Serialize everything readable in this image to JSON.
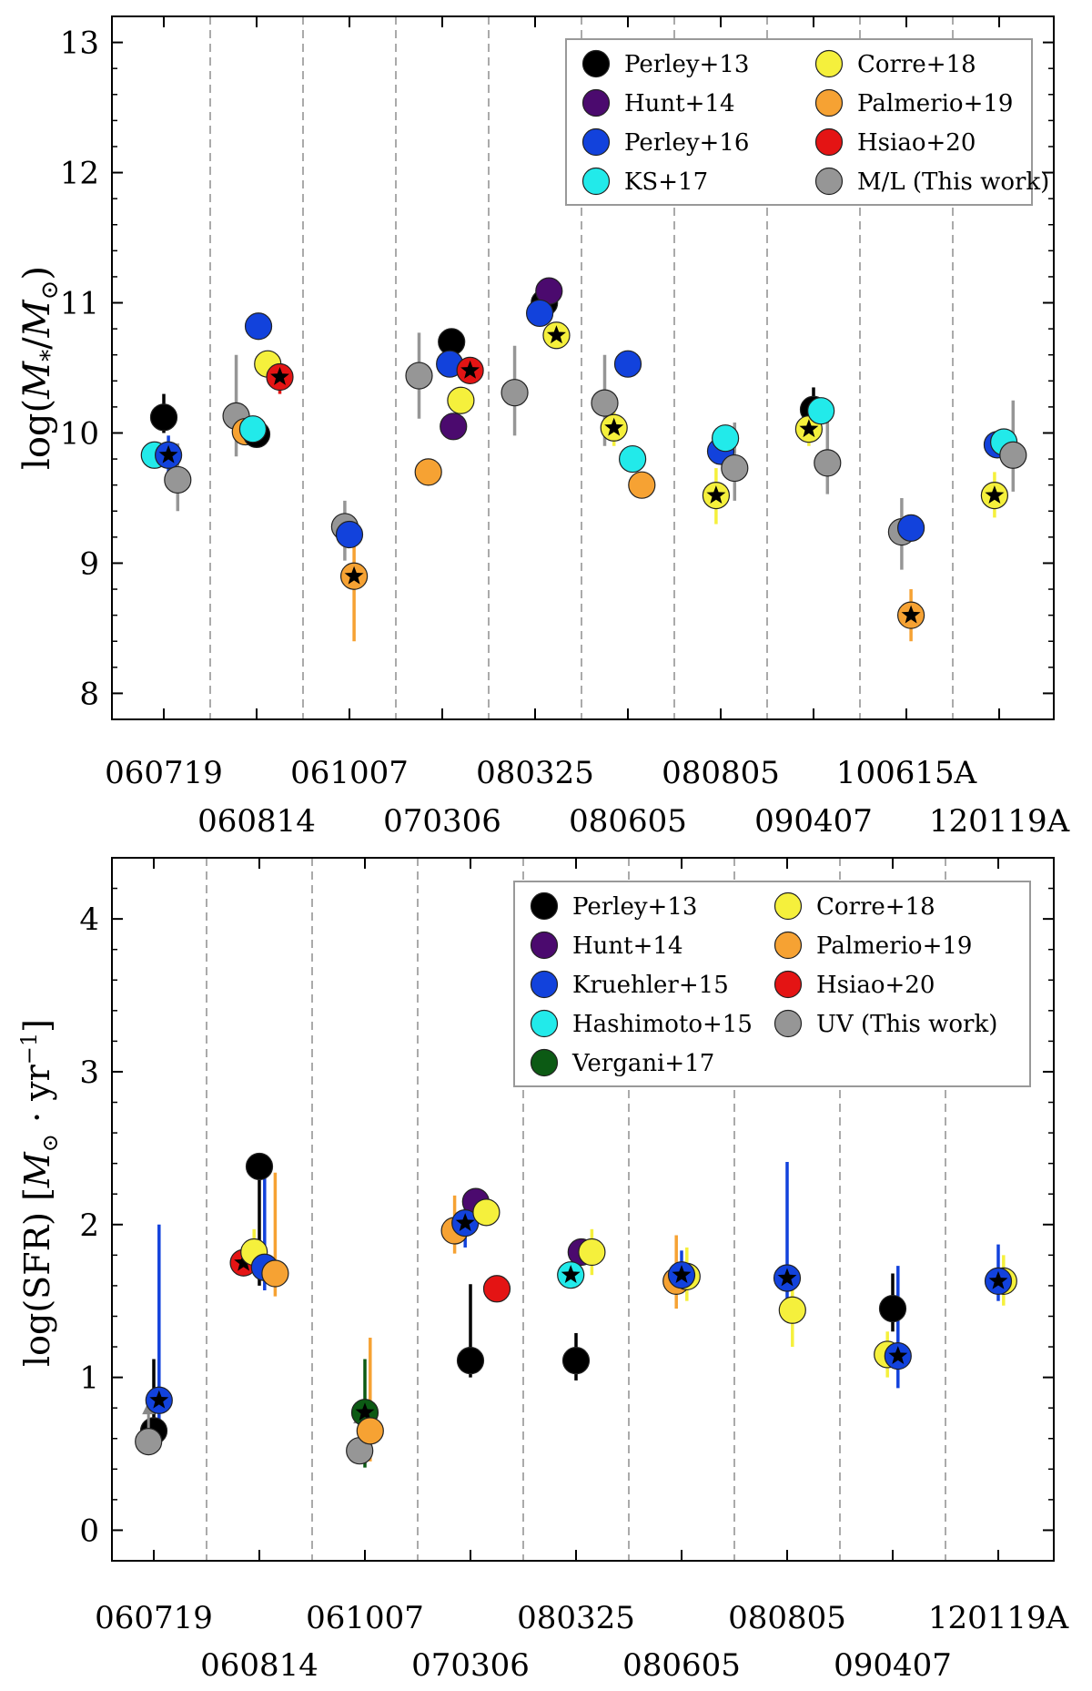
{
  "chart_data": [
    {
      "type": "scatter",
      "ylabel": "log(M*/M⊙)",
      "ylim": [
        7.8,
        13.2
      ],
      "yticks": [
        8,
        9,
        10,
        11,
        12,
        13
      ],
      "xtick_labels": [
        {
          "label": "060719",
          "row": 1
        },
        {
          "label": "060814",
          "row": 2
        },
        {
          "label": "061007",
          "row": 1
        },
        {
          "label": "070306",
          "row": 2
        },
        {
          "label": "080325",
          "row": 1
        },
        {
          "label": "080605",
          "row": 2
        },
        {
          "label": "080805",
          "row": 1
        },
        {
          "label": "090407",
          "row": 2
        },
        {
          "label": "100615A",
          "row": 1
        },
        {
          "label": "120119A",
          "row": 2
        }
      ],
      "legend": [
        {
          "name": "Perley+13",
          "color": "#000000"
        },
        {
          "name": "Hunt+14",
          "color": "#4b0a6e"
        },
        {
          "name": "Perley+16",
          "color": "#1242dc"
        },
        {
          "name": "KS+17",
          "color": "#22eaea"
        },
        {
          "name": "Corre+18",
          "color": "#f5f03c"
        },
        {
          "name": "Palmerio+19",
          "color": "#f6a233"
        },
        {
          "name": "Hsiao+20",
          "color": "#e41414"
        },
        {
          "name": "M/L (This work)",
          "color": "#969696"
        }
      ],
      "points": [
        {
          "series": "Perley+13",
          "x": 0.0,
          "y": 10.12,
          "err": [
            10.0,
            10.3
          ]
        },
        {
          "series": "KS+17",
          "x": -0.1,
          "y": 9.83
        },
        {
          "series": "Perley+16",
          "x": 0.05,
          "y": 9.83,
          "err": [
            9.7,
            9.98
          ],
          "star": true
        },
        {
          "series": "M/L (This work)",
          "x": 0.15,
          "y": 9.64,
          "err": [
            9.4,
            9.92
          ]
        },
        {
          "series": "M/L (This work)",
          "x": 0.78,
          "y": 10.13,
          "err": [
            9.82,
            10.6
          ]
        },
        {
          "series": "Palmerio+19",
          "x": 0.88,
          "y": 10.01
        },
        {
          "series": "Perley+13",
          "x": 1.0,
          "y": 9.99
        },
        {
          "series": "KS+17",
          "x": 0.96,
          "y": 10.03
        },
        {
          "series": "Perley+16",
          "x": 1.02,
          "y": 10.82
        },
        {
          "series": "Corre+18",
          "x": 1.12,
          "y": 10.53
        },
        {
          "series": "Hsiao+20",
          "x": 1.25,
          "y": 10.43,
          "err": [
            10.3,
            10.52
          ],
          "star": true
        },
        {
          "series": "M/L (This work)",
          "x": 1.95,
          "y": 9.28,
          "err": [
            9.02,
            9.48
          ]
        },
        {
          "series": "Perley+16",
          "x": 2.0,
          "y": 9.22
        },
        {
          "series": "Palmerio+19",
          "x": 2.05,
          "y": 8.9,
          "err": [
            8.4,
            9.3
          ],
          "star": true
        },
        {
          "series": "M/L (This work)",
          "x": 2.75,
          "y": 10.44,
          "err": [
            10.11,
            10.77
          ]
        },
        {
          "series": "Palmerio+19",
          "x": 2.85,
          "y": 9.7
        },
        {
          "series": "Perley+13",
          "x": 3.1,
          "y": 10.7
        },
        {
          "series": "Perley+16",
          "x": 3.08,
          "y": 10.53
        },
        {
          "series": "Hunt+14",
          "x": 3.12,
          "y": 10.05
        },
        {
          "series": "Corre+18",
          "x": 3.2,
          "y": 10.25
        },
        {
          "series": "Hsiao+20",
          "x": 3.3,
          "y": 10.48,
          "star": true
        },
        {
          "series": "M/L (This work)",
          "x": 3.78,
          "y": 10.31,
          "err": [
            9.98,
            10.67
          ]
        },
        {
          "series": "Perley+13",
          "x": 4.1,
          "y": 11.0
        },
        {
          "series": "Hunt+14",
          "x": 4.15,
          "y": 11.09
        },
        {
          "series": "Perley+16",
          "x": 4.05,
          "y": 10.92
        },
        {
          "series": "Corre+18",
          "x": 4.23,
          "y": 10.75,
          "star": true
        },
        {
          "series": "M/L (This work)",
          "x": 4.75,
          "y": 10.23,
          "err": [
            9.9,
            10.6
          ]
        },
        {
          "series": "Corre+18",
          "x": 4.85,
          "y": 10.04,
          "err": [
            9.9,
            10.2
          ],
          "star": true
        },
        {
          "series": "Perley+16",
          "x": 5.0,
          "y": 10.53
        },
        {
          "series": "KS+17",
          "x": 5.05,
          "y": 9.8
        },
        {
          "series": "Palmerio+19",
          "x": 5.15,
          "y": 9.6
        },
        {
          "series": "Corre+18",
          "x": 5.95,
          "y": 9.52,
          "err": [
            9.3,
            9.73
          ],
          "star": true
        },
        {
          "series": "Perley+16",
          "x": 6.0,
          "y": 9.86
        },
        {
          "series": "KS+17",
          "x": 6.05,
          "y": 9.96
        },
        {
          "series": "M/L (This work)",
          "x": 6.15,
          "y": 9.73,
          "err": [
            9.48,
            10.08
          ]
        },
        {
          "series": "Perley+13",
          "x": 7.0,
          "y": 10.18,
          "err": [
            10.05,
            10.35
          ]
        },
        {
          "series": "Corre+18",
          "x": 6.95,
          "y": 10.03,
          "err": [
            9.9,
            10.2
          ],
          "star": true
        },
        {
          "series": "KS+17",
          "x": 7.08,
          "y": 10.17
        },
        {
          "series": "M/L (This work)",
          "x": 7.15,
          "y": 9.77,
          "err": [
            9.53,
            10.2
          ]
        },
        {
          "series": "M/L (This work)",
          "x": 7.95,
          "y": 9.24,
          "err": [
            8.95,
            9.5
          ]
        },
        {
          "series": "Perley+16",
          "x": 8.05,
          "y": 9.27
        },
        {
          "series": "Palmerio+19",
          "x": 8.05,
          "y": 8.6,
          "err": [
            8.4,
            8.8
          ],
          "star": true
        },
        {
          "series": "Corre+18",
          "x": 8.95,
          "y": 9.52,
          "err": [
            9.35,
            9.7
          ],
          "star": true
        },
        {
          "series": "Perley+16",
          "x": 8.98,
          "y": 9.91
        },
        {
          "series": "KS+17",
          "x": 9.05,
          "y": 9.93
        },
        {
          "series": "M/L (This work)",
          "x": 9.15,
          "y": 9.83,
          "err": [
            9.55,
            10.25
          ]
        }
      ]
    },
    {
      "type": "scatter",
      "ylabel": "log(SFR) [M⊙ · yr⁻¹]",
      "ylim": [
        -0.2,
        4.4
      ],
      "yticks": [
        0,
        1,
        2,
        3,
        4
      ],
      "xtick_labels": [
        {
          "label": "060719",
          "row": 1
        },
        {
          "label": "060814",
          "row": 2
        },
        {
          "label": "061007",
          "row": 1
        },
        {
          "label": "070306",
          "row": 2
        },
        {
          "label": "080325",
          "row": 1
        },
        {
          "label": "080605",
          "row": 2
        },
        {
          "label": "080805",
          "row": 1
        },
        {
          "label": "090407",
          "row": 2
        },
        {
          "label": "120119A",
          "row": 1
        }
      ],
      "legend": [
        {
          "name": "Perley+13",
          "color": "#000000"
        },
        {
          "name": "Hunt+14",
          "color": "#4b0a6e"
        },
        {
          "name": "Kruehler+15",
          "color": "#1242dc"
        },
        {
          "name": "Hashimoto+15",
          "color": "#22eaea"
        },
        {
          "name": "Vergani+17",
          "color": "#0c5a14"
        },
        {
          "name": "Corre+18",
          "color": "#f5f03c"
        },
        {
          "name": "Palmerio+19",
          "color": "#f6a233"
        },
        {
          "name": "Hsiao+20",
          "color": "#e41414"
        },
        {
          "name": "UV (This work)",
          "color": "#969696"
        }
      ],
      "points": [
        {
          "series": "Perley+13",
          "x": 0.0,
          "y": 0.65,
          "err": [
            0.55,
            1.12
          ]
        },
        {
          "series": "UV (This work)",
          "x": -0.05,
          "y": 0.58,
          "arrow": true
        },
        {
          "series": "Kruehler+15",
          "x": 0.05,
          "y": 0.85,
          "err": [
            0.6,
            2.0
          ],
          "star": true
        },
        {
          "series": "Hsiao+20",
          "x": 0.85,
          "y": 1.75,
          "star": true
        },
        {
          "series": "Corre+18",
          "x": 0.95,
          "y": 1.82,
          "err": [
            1.7,
            1.97
          ]
        },
        {
          "series": "Perley+13",
          "x": 1.0,
          "y": 2.38,
          "err": [
            1.6,
            2.45
          ]
        },
        {
          "series": "Kruehler+15",
          "x": 1.05,
          "y": 1.72,
          "err": [
            1.57,
            2.45
          ]
        },
        {
          "series": "Palmerio+19",
          "x": 1.15,
          "y": 1.68,
          "err": [
            1.53,
            2.34
          ]
        },
        {
          "series": "UV (This work)",
          "x": 1.95,
          "y": 0.52,
          "arrow": true
        },
        {
          "series": "Vergani+17",
          "x": 2.0,
          "y": 0.77,
          "err": [
            0.41,
            1.12
          ],
          "star": true
        },
        {
          "series": "Palmerio+19",
          "x": 2.05,
          "y": 0.65,
          "err": [
            0.45,
            1.26
          ]
        },
        {
          "series": "Palmerio+19",
          "x": 2.85,
          "y": 1.96,
          "err": [
            1.81,
            2.19
          ]
        },
        {
          "series": "Hunt+14",
          "x": 3.05,
          "y": 2.15
        },
        {
          "series": "Kruehler+15",
          "x": 2.95,
          "y": 2.01,
          "err": [
            1.85,
            2.15
          ],
          "star": true
        },
        {
          "series": "Corre+18",
          "x": 3.15,
          "y": 2.08
        },
        {
          "series": "Perley+13",
          "x": 3.0,
          "y": 1.11,
          "err": [
            1.0,
            1.61
          ]
        },
        {
          "series": "Hsiao+20",
          "x": 3.25,
          "y": 1.58
        },
        {
          "series": "Hunt+14",
          "x": 4.05,
          "y": 1.82
        },
        {
          "series": "Corre+18",
          "x": 4.15,
          "y": 1.82,
          "err": [
            1.67,
            1.97
          ]
        },
        {
          "series": "Hashimoto+15",
          "x": 3.95,
          "y": 1.67,
          "star": true
        },
        {
          "series": "Perley+13",
          "x": 4.0,
          "y": 1.11,
          "err": [
            0.98,
            1.29
          ]
        },
        {
          "series": "Palmerio+19",
          "x": 4.95,
          "y": 1.63,
          "err": [
            1.45,
            1.93
          ]
        },
        {
          "series": "Corre+18",
          "x": 5.05,
          "y": 1.66,
          "err": [
            1.5,
            1.85
          ]
        },
        {
          "series": "Kruehler+15",
          "x": 5.0,
          "y": 1.67,
          "err": [
            1.55,
            1.83
          ],
          "star": true
        },
        {
          "series": "Kruehler+15",
          "x": 6.0,
          "y": 1.65,
          "err": [
            1.4,
            2.41
          ],
          "star": true
        },
        {
          "series": "Corre+18",
          "x": 6.05,
          "y": 1.44,
          "err": [
            1.2,
            1.7
          ]
        },
        {
          "series": "Perley+13",
          "x": 7.0,
          "y": 1.45,
          "err": [
            1.3,
            1.68
          ]
        },
        {
          "series": "Corre+18",
          "x": 6.95,
          "y": 1.15,
          "err": [
            1.0,
            1.3
          ]
        },
        {
          "series": "Kruehler+15",
          "x": 7.05,
          "y": 1.14,
          "err": [
            0.93,
            1.73
          ],
          "star": true
        },
        {
          "series": "Corre+18",
          "x": 8.05,
          "y": 1.63,
          "err": [
            1.47,
            1.8
          ]
        },
        {
          "series": "Kruehler+15",
          "x": 8.0,
          "y": 1.63,
          "err": [
            1.5,
            1.87
          ],
          "star": true
        }
      ]
    }
  ]
}
